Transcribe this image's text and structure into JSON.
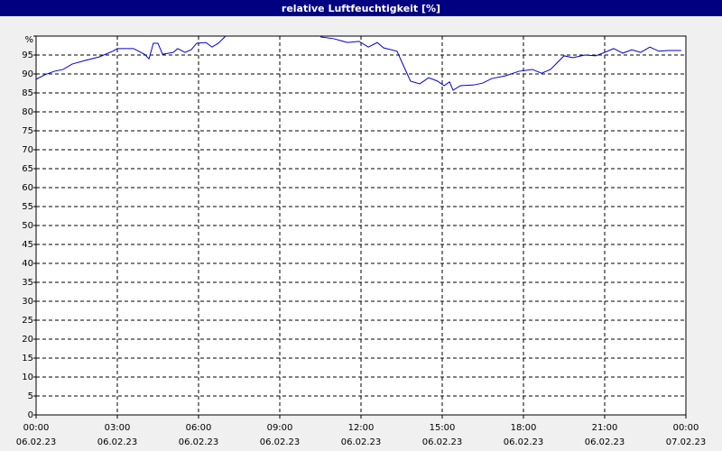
{
  "chart_data": {
    "type": "line",
    "title": "relative Luftfeuchtigkeit [%]",
    "x": [
      0,
      0.33,
      0.67,
      1.0,
      1.33,
      1.83,
      2.33,
      2.83,
      3.0,
      3.6,
      4.0,
      4.17,
      4.33,
      4.5,
      4.67,
      5.07,
      5.23,
      5.5,
      5.73,
      5.93,
      6.27,
      6.5,
      6.73,
      7.0,
      8.8,
      10.5,
      11.0,
      11.5,
      11.93,
      12.27,
      12.6,
      12.83,
      13.33,
      13.6,
      13.83,
      14.17,
      14.5,
      14.83,
      15.07,
      15.27,
      15.4,
      15.67,
      16.17,
      16.5,
      16.83,
      17.33,
      17.83,
      18.33,
      18.67,
      19.0,
      19.5,
      19.83,
      20.27,
      20.67,
      21.0,
      21.33,
      21.67,
      22.0,
      22.33,
      22.67,
      23.0,
      23.33,
      23.83
    ],
    "series": [
      {
        "name": "relative Luftfeuchtigkeit",
        "color": "#0000cc",
        "values": [
          88.6,
          89.8,
          90.7,
          91.2,
          92.6,
          93.6,
          94.5,
          96.0,
          96.7,
          96.7,
          95.2,
          94.0,
          98.1,
          98.1,
          95.2,
          95.7,
          96.7,
          95.7,
          96.4,
          98.1,
          98.3,
          97.1,
          98.1,
          100,
          null,
          99.8,
          99.3,
          98.3,
          98.6,
          97.1,
          98.3,
          96.9,
          96.0,
          91.7,
          88.1,
          87.4,
          89.0,
          88.1,
          86.9,
          87.9,
          85.7,
          86.9,
          87.1,
          87.6,
          88.8,
          89.5,
          90.7,
          91.2,
          90.2,
          91.2,
          94.8,
          94.3,
          95.0,
          94.8,
          95.7,
          96.7,
          95.5,
          96.4,
          95.7,
          97.1,
          96.0,
          96.2,
          96.2
        ]
      }
    ],
    "xlim": [
      0,
      24
    ],
    "xticks": [
      {
        "value": 0,
        "label": [
          "00:00",
          "06.02.23"
        ]
      },
      {
        "value": 3,
        "label": [
          "03:00",
          "06.02.23"
        ]
      },
      {
        "value": 6,
        "label": [
          "06:00",
          "06.02.23"
        ]
      },
      {
        "value": 9,
        "label": [
          "09:00",
          "06.02.23"
        ]
      },
      {
        "value": 12,
        "label": [
          "12:00",
          "06.02.23"
        ]
      },
      {
        "value": 15,
        "label": [
          "15:00",
          "06.02.23"
        ]
      },
      {
        "value": 18,
        "label": [
          "18:00",
          "06.02.23"
        ]
      },
      {
        "value": 21,
        "label": [
          "21:00",
          "06.02.23"
        ]
      },
      {
        "value": 24,
        "label": [
          "00:00",
          "07.02.23"
        ]
      }
    ],
    "ylim": [
      0,
      100
    ],
    "yticks": [
      0,
      5,
      10,
      15,
      20,
      25,
      30,
      35,
      40,
      45,
      50,
      55,
      60,
      65,
      70,
      75,
      80,
      85,
      90,
      95,
      {
        "value": 100,
        "label": "%"
      }
    ],
    "grid": true
  }
}
